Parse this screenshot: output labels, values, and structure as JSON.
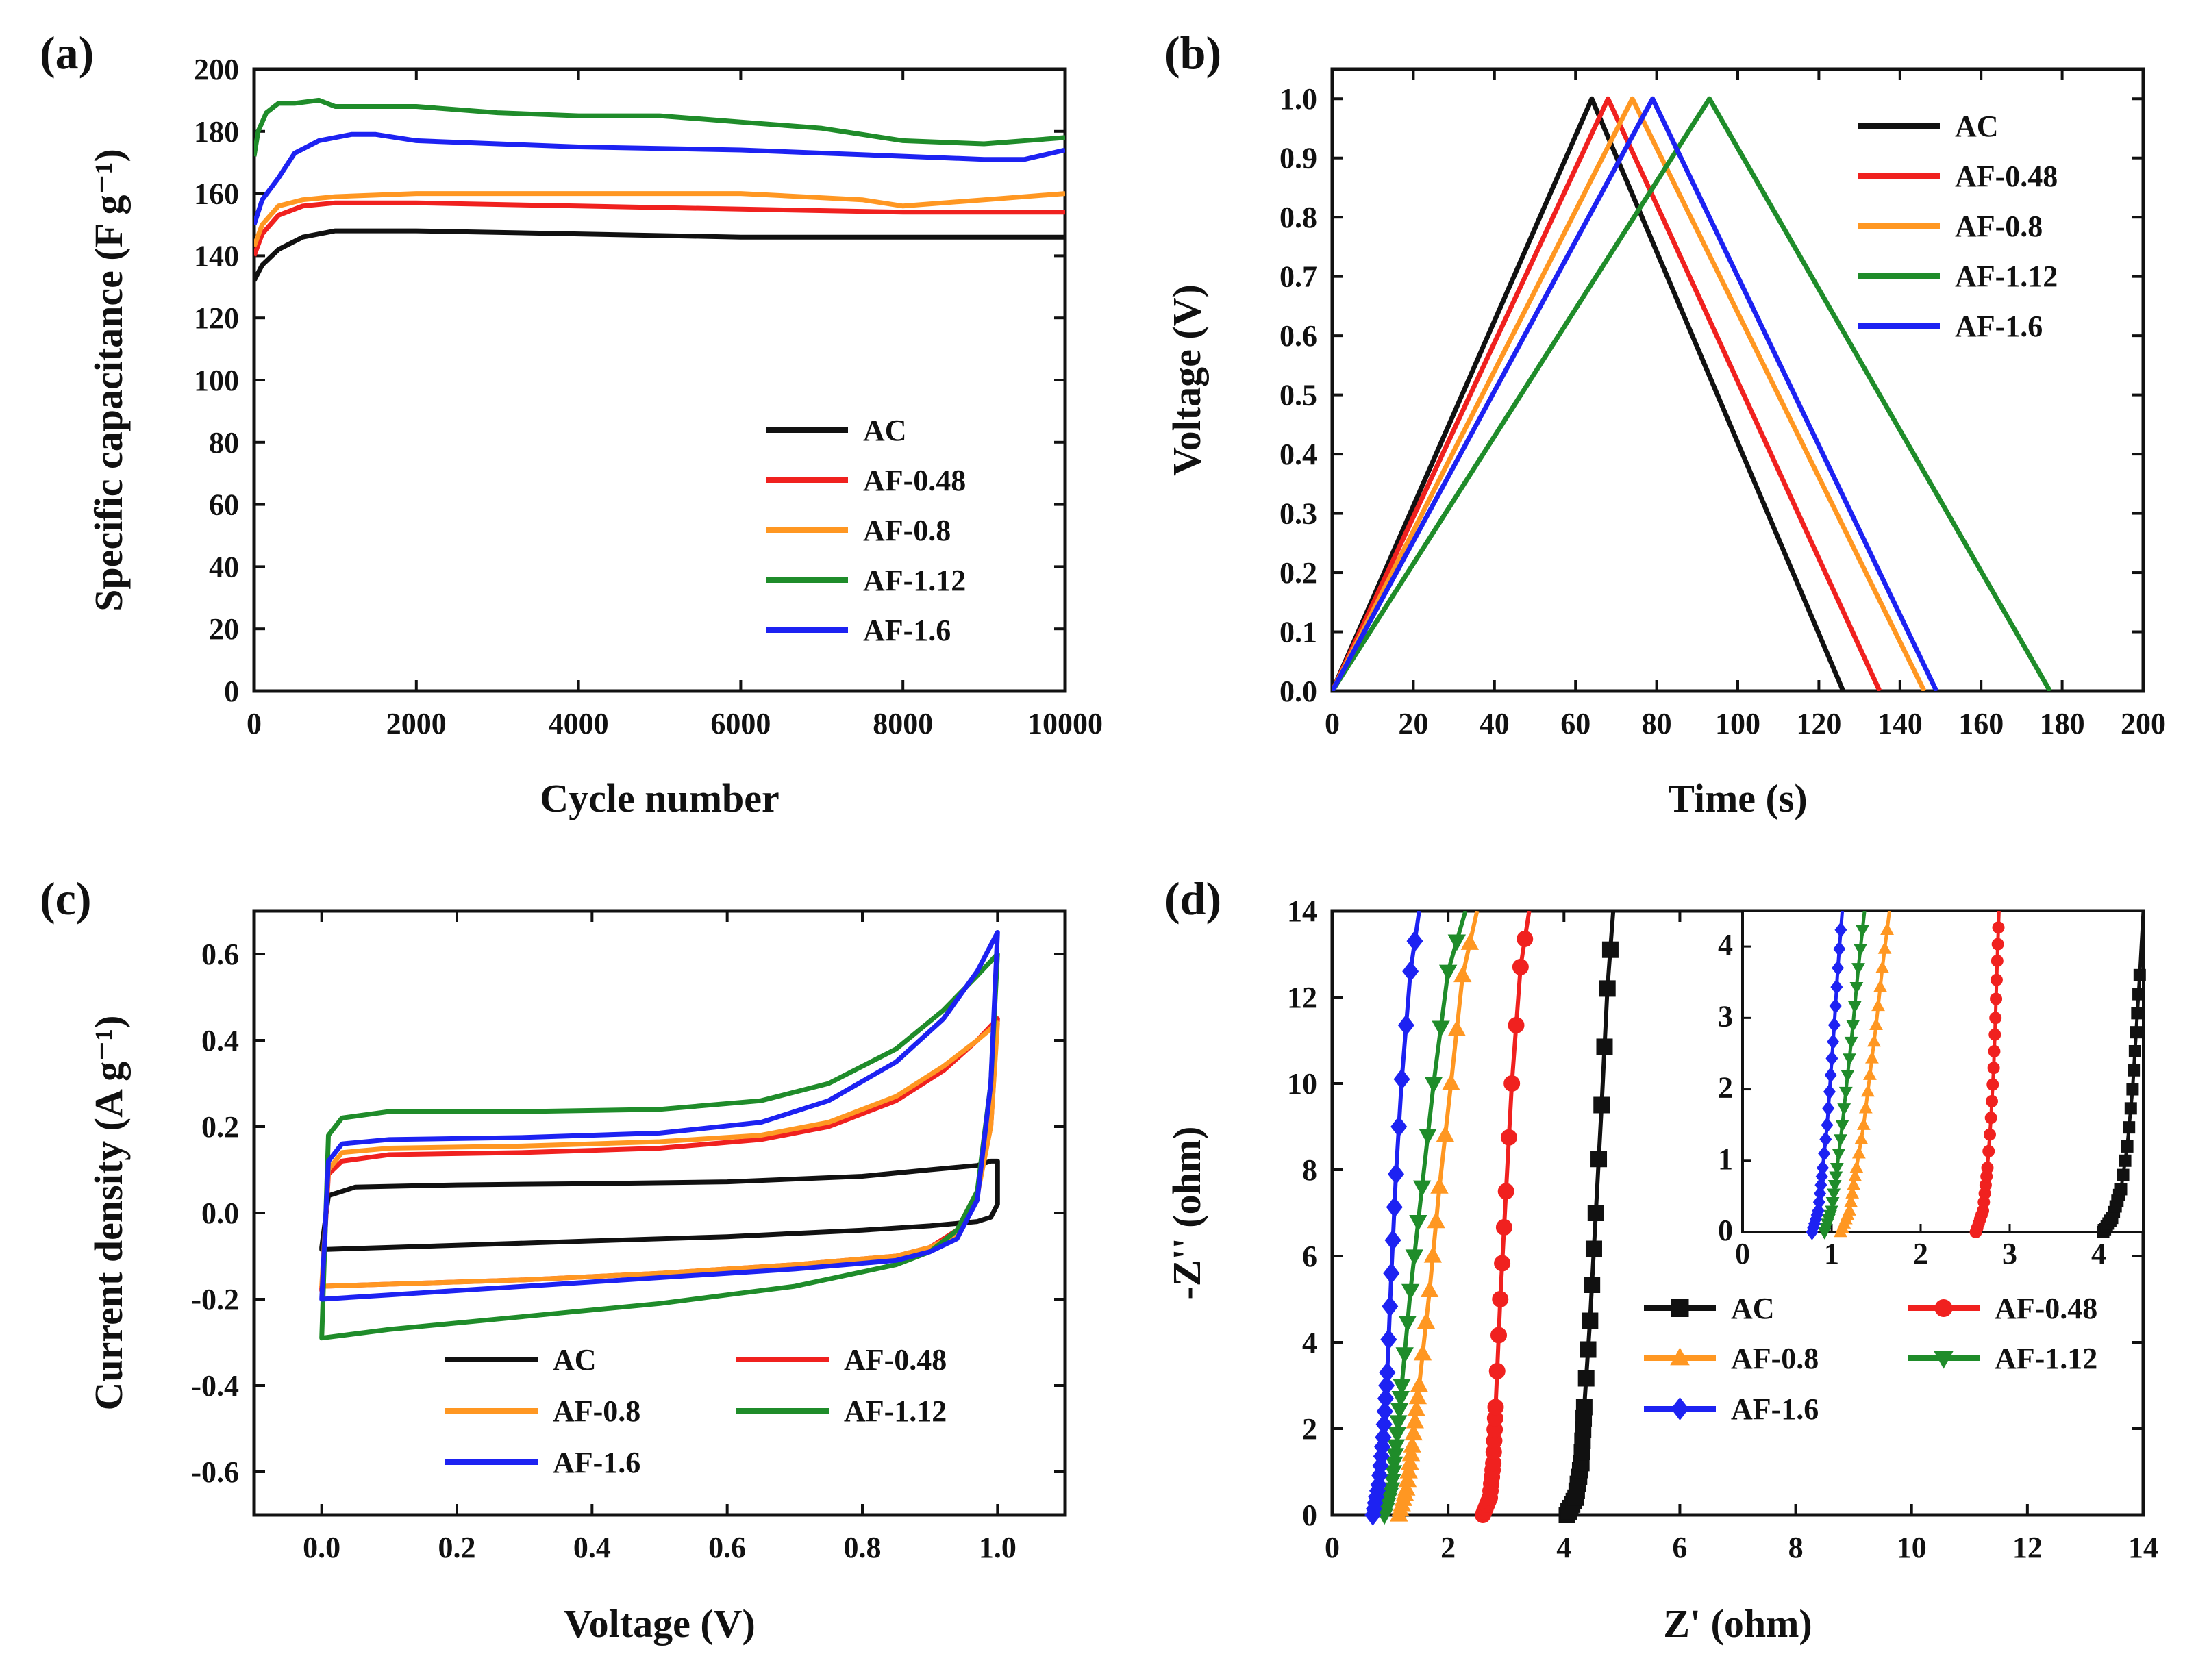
{
  "colors": {
    "AC": "#111111",
    "AF-0.48": "#f0211f",
    "AF-0.8": "#ff9722",
    "AF-1.12": "#1f8c2a",
    "AF-1.6": "#1d22f2"
  },
  "chart_data": [
    {
      "panel": "(a)",
      "type": "line",
      "xlabel": "Cycle number",
      "ylabel": "Specific capacitance (F g⁻¹)",
      "xlim": [
        0,
        10000
      ],
      "ylim": [
        0,
        200
      ],
      "xticks": [
        0,
        2000,
        4000,
        6000,
        8000,
        10000
      ],
      "yticks": [
        0,
        20,
        40,
        60,
        80,
        100,
        120,
        140,
        160,
        180,
        200
      ],
      "legend": "middle-right",
      "series": [
        {
          "name": "AC",
          "x": [
            0,
            100,
            300,
            600,
            1000,
            2000,
            4000,
            6000,
            8000,
            10000
          ],
          "y": [
            132,
            137,
            142,
            146,
            148,
            148,
            147,
            146,
            146,
            146
          ]
        },
        {
          "name": "AF-0.48",
          "x": [
            0,
            100,
            300,
            600,
            1000,
            2000,
            4000,
            6000,
            8000,
            10000
          ],
          "y": [
            140,
            147,
            153,
            156,
            157,
            157,
            156,
            155,
            154,
            154
          ]
        },
        {
          "name": "AF-0.8",
          "x": [
            0,
            100,
            300,
            600,
            1000,
            2000,
            4000,
            6000,
            7500,
            8000,
            9000,
            10000
          ],
          "y": [
            143,
            150,
            156,
            158,
            159,
            160,
            160,
            160,
            158,
            156,
            158,
            160
          ]
        },
        {
          "name": "AF-1.12",
          "x": [
            0,
            50,
            150,
            300,
            500,
            800,
            1000,
            2000,
            3000,
            4000,
            5000,
            6000,
            7000,
            8000,
            9000,
            10000
          ],
          "y": [
            172,
            180,
            186,
            189,
            189,
            190,
            188,
            188,
            186,
            185,
            185,
            183,
            181,
            177,
            176,
            178
          ]
        },
        {
          "name": "AF-1.6",
          "x": [
            0,
            100,
            300,
            500,
            800,
            1200,
            1500,
            2000,
            4000,
            6000,
            8000,
            9000,
            9500,
            10000
          ],
          "y": [
            150,
            158,
            165,
            173,
            177,
            179,
            179,
            177,
            175,
            174,
            172,
            171,
            171,
            174
          ]
        }
      ]
    },
    {
      "panel": "(b)",
      "type": "line",
      "xlabel": "Time (s)",
      "ylabel": "Voltage (V)",
      "xlim": [
        0,
        200
      ],
      "ylim": [
        0,
        1.05
      ],
      "xticks": [
        0,
        20,
        40,
        60,
        80,
        100,
        120,
        140,
        160,
        180,
        200
      ],
      "yticks": [
        0.0,
        0.1,
        0.2,
        0.3,
        0.4,
        0.5,
        0.6,
        0.7,
        0.8,
        0.9,
        1.0
      ],
      "legend": "top-right",
      "series": [
        {
          "name": "AC",
          "x": [
            0,
            64,
            126
          ],
          "y": [
            0.0,
            1.0,
            0.0
          ]
        },
        {
          "name": "AF-0.48",
          "x": [
            0,
            68,
            135
          ],
          "y": [
            0.0,
            1.0,
            0.0
          ]
        },
        {
          "name": "AF-0.8",
          "x": [
            0,
            74,
            146
          ],
          "y": [
            0.0,
            1.0,
            0.0
          ]
        },
        {
          "name": "AF-1.12",
          "x": [
            0,
            93,
            177
          ],
          "y": [
            0.0,
            1.0,
            0.0
          ]
        },
        {
          "name": "AF-1.6",
          "x": [
            0,
            79,
            149
          ],
          "y": [
            0.0,
            1.0,
            0.0
          ]
        }
      ]
    },
    {
      "panel": "(c)",
      "type": "line",
      "xlabel": "Voltage (V)",
      "ylabel": "Current density (A g⁻¹)",
      "xlim": [
        -0.1,
        1.1
      ],
      "ylim": [
        -0.7,
        0.7
      ],
      "xticks": [
        0.0,
        0.2,
        0.4,
        0.6,
        0.8,
        1.0
      ],
      "yticks": [
        -0.6,
        -0.4,
        -0.2,
        0.0,
        0.2,
        0.4,
        0.6
      ],
      "legend": "bottom-center",
      "series": [
        {
          "name": "AC",
          "x": [
            0.0,
            0.01,
            0.05,
            0.2,
            0.4,
            0.6,
            0.8,
            0.9,
            0.97,
            0.99,
            1.0,
            1.0,
            0.99,
            0.97,
            0.9,
            0.8,
            0.6,
            0.4,
            0.2,
            0.0
          ],
          "y": [
            -0.08,
            0.04,
            0.06,
            0.065,
            0.068,
            0.072,
            0.085,
            0.1,
            0.11,
            0.12,
            0.12,
            0.02,
            -0.01,
            -0.02,
            -0.03,
            -0.04,
            -0.055,
            -0.065,
            -0.075,
            -0.085
          ]
        },
        {
          "name": "AF-0.48",
          "x": [
            0.0,
            0.01,
            0.03,
            0.1,
            0.3,
            0.5,
            0.65,
            0.75,
            0.85,
            0.92,
            0.97,
            1.0,
            0.99,
            0.97,
            0.94,
            0.9,
            0.85,
            0.7,
            0.5,
            0.3,
            0.1,
            0.0
          ],
          "y": [
            -0.18,
            0.09,
            0.12,
            0.135,
            0.14,
            0.15,
            0.17,
            0.2,
            0.26,
            0.33,
            0.4,
            0.45,
            0.2,
            0.05,
            -0.04,
            -0.08,
            -0.1,
            -0.12,
            -0.14,
            -0.155,
            -0.165,
            -0.17
          ]
        },
        {
          "name": "AF-0.8",
          "x": [
            0.0,
            0.01,
            0.03,
            0.1,
            0.3,
            0.5,
            0.65,
            0.75,
            0.85,
            0.92,
            0.97,
            1.0,
            0.99,
            0.97,
            0.94,
            0.9,
            0.85,
            0.7,
            0.5,
            0.3,
            0.1,
            0.0
          ],
          "y": [
            -0.17,
            0.1,
            0.14,
            0.15,
            0.155,
            0.165,
            0.18,
            0.21,
            0.27,
            0.34,
            0.4,
            0.44,
            0.2,
            0.04,
            -0.05,
            -0.08,
            -0.1,
            -0.12,
            -0.14,
            -0.155,
            -0.165,
            -0.17
          ]
        },
        {
          "name": "AF-1.12",
          "x": [
            0.0,
            0.01,
            0.03,
            0.1,
            0.3,
            0.5,
            0.65,
            0.75,
            0.85,
            0.92,
            0.97,
            1.0,
            0.99,
            0.97,
            0.94,
            0.9,
            0.85,
            0.7,
            0.5,
            0.3,
            0.1,
            0.0
          ],
          "y": [
            -0.29,
            0.18,
            0.22,
            0.235,
            0.235,
            0.24,
            0.26,
            0.3,
            0.38,
            0.47,
            0.55,
            0.6,
            0.3,
            0.05,
            -0.04,
            -0.09,
            -0.12,
            -0.17,
            -0.21,
            -0.24,
            -0.27,
            -0.29
          ]
        },
        {
          "name": "AF-1.6",
          "x": [
            0.0,
            0.01,
            0.03,
            0.1,
            0.3,
            0.5,
            0.65,
            0.75,
            0.85,
            0.92,
            0.97,
            1.0,
            0.99,
            0.97,
            0.94,
            0.9,
            0.85,
            0.7,
            0.5,
            0.3,
            0.1,
            0.0
          ],
          "y": [
            -0.2,
            0.12,
            0.16,
            0.17,
            0.175,
            0.185,
            0.21,
            0.26,
            0.35,
            0.45,
            0.56,
            0.65,
            0.3,
            0.03,
            -0.06,
            -0.09,
            -0.11,
            -0.13,
            -0.15,
            -0.17,
            -0.19,
            -0.2
          ]
        }
      ]
    },
    {
      "panel": "(d)",
      "type": "scatter",
      "xlabel": "Z' (ohm)",
      "ylabel": "-Z'' (ohm)",
      "xlim": [
        0,
        14
      ],
      "ylim": [
        0,
        14
      ],
      "xticks": [
        0,
        2,
        4,
        6,
        8,
        10,
        12,
        14
      ],
      "yticks": [
        0,
        2,
        4,
        6,
        8,
        10,
        12,
        14
      ],
      "legend": "bottom-right",
      "series": [
        {
          "name": "AC",
          "marker": "square",
          "x": [
            4.05,
            4.2,
            4.3,
            4.35,
            4.45,
            4.55,
            4.65,
            4.75,
            4.85
          ],
          "y": [
            0.0,
            0.4,
            1.2,
            2.5,
            4.5,
            7.0,
            9.5,
            12.2,
            14.0
          ]
        },
        {
          "name": "AF-0.48",
          "marker": "circle",
          "x": [
            2.6,
            2.72,
            2.78,
            2.82,
            2.9,
            3.0,
            3.1,
            3.25,
            3.4
          ],
          "y": [
            0.0,
            0.4,
            1.2,
            2.5,
            5.0,
            7.5,
            10.0,
            12.7,
            14.0
          ]
        },
        {
          "name": "AF-0.8",
          "marker": "triangle-up",
          "x": [
            1.15,
            1.28,
            1.38,
            1.5,
            1.68,
            1.85,
            2.05,
            2.25,
            2.5
          ],
          "y": [
            0.0,
            0.6,
            1.6,
            3.0,
            5.2,
            7.6,
            10.0,
            12.5,
            14.0
          ]
        },
        {
          "name": "AF-1.12",
          "marker": "triangle-down",
          "x": [
            0.9,
            1.02,
            1.1,
            1.2,
            1.35,
            1.55,
            1.75,
            2.0,
            2.3
          ],
          "y": [
            0.0,
            0.6,
            1.6,
            3.0,
            5.2,
            7.6,
            10.0,
            12.6,
            14.0
          ]
        },
        {
          "name": "AF-1.6",
          "marker": "diamond",
          "x": [
            0.7,
            0.8,
            0.88,
            0.95,
            1.02,
            1.1,
            1.2,
            1.35,
            1.5
          ],
          "y": [
            0.0,
            0.7,
            1.8,
            3.3,
            5.6,
            7.9,
            10.1,
            12.6,
            14.0
          ]
        }
      ],
      "inset": {
        "xlim": [
          0,
          4.5
        ],
        "ylim": [
          0,
          4.5
        ],
        "xticks": [
          0,
          1,
          2,
          3,
          4
        ],
        "yticks": [
          0,
          1,
          2,
          3,
          4
        ],
        "series": [
          {
            "name": "AC",
            "x": [
              4.05,
              4.15,
              4.25,
              4.32,
              4.38,
              4.42,
              4.46,
              4.5
            ],
            "y": [
              0.0,
              0.2,
              0.6,
              1.2,
              2.0,
              2.8,
              3.6,
              4.5
            ]
          },
          {
            "name": "AF-0.48",
            "x": [
              2.62,
              2.7,
              2.75,
              2.79,
              2.82,
              2.84,
              2.86,
              2.88
            ],
            "y": [
              0.0,
              0.3,
              0.9,
              1.6,
              2.3,
              3.0,
              3.8,
              4.5
            ]
          },
          {
            "name": "AF-0.8",
            "x": [
              1.1,
              1.2,
              1.28,
              1.36,
              1.43,
              1.5,
              1.57,
              1.65
            ],
            "y": [
              0.0,
              0.3,
              0.9,
              1.5,
              2.2,
              2.9,
              3.7,
              4.5
            ]
          },
          {
            "name": "AF-1.12",
            "x": [
              0.92,
              1.0,
              1.06,
              1.12,
              1.18,
              1.24,
              1.3,
              1.37
            ],
            "y": [
              0.0,
              0.3,
              0.9,
              1.5,
              2.2,
              2.9,
              3.7,
              4.5
            ]
          },
          {
            "name": "AF-1.6",
            "x": [
              0.78,
              0.85,
              0.9,
              0.95,
              0.99,
              1.03,
              1.07,
              1.12
            ],
            "y": [
              0.0,
              0.3,
              0.9,
              1.5,
              2.2,
              2.9,
              3.7,
              4.5
            ]
          }
        ]
      }
    }
  ]
}
